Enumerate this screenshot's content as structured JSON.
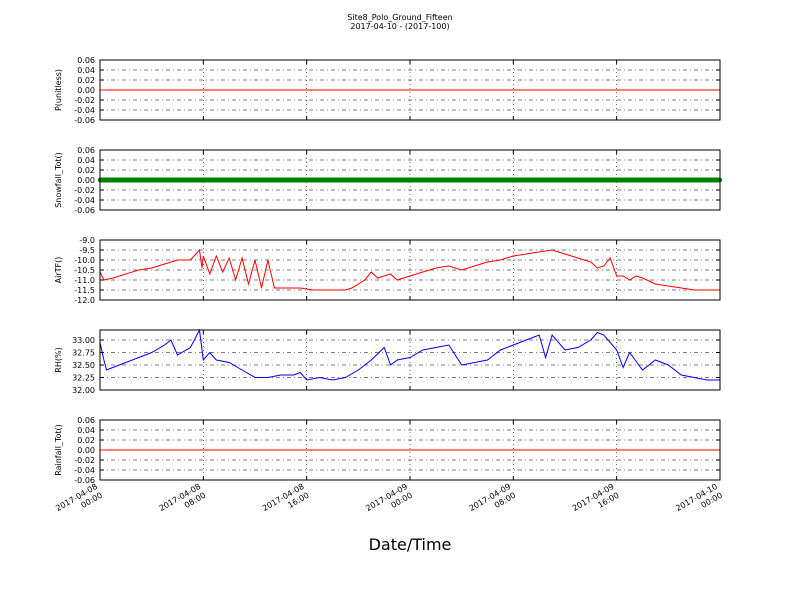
{
  "figure": {
    "title": "Site8_Polo_Ground_Fifteen",
    "subtitle": "2017-04-10 - (2017-100)",
    "xlabel": "Date/Time"
  },
  "chart_data": {
    "type": "line",
    "x_axis": {
      "start": "2017-04-08 00:00",
      "end": "2017-04-10 00:00",
      "tick_hours": [
        0,
        8,
        16,
        24,
        32,
        40,
        48
      ],
      "tick_labels": [
        [
          "2017-04-08",
          "00:00"
        ],
        [
          "2017-04-08",
          "08:00"
        ],
        [
          "2017-04-08",
          "16:00"
        ],
        [
          "2017-04-09",
          "00:00"
        ],
        [
          "2017-04-09",
          "08:00"
        ],
        [
          "2017-04-09",
          "16:00"
        ],
        [
          "2017-04-10",
          "00:00"
        ]
      ]
    },
    "grid": "horizontal dash-dot lines, vertical dotted at ticks",
    "panels": [
      {
        "ylabel": "P(unitless)",
        "ylim": [
          -0.06,
          0.06
        ],
        "yticks": [
          0.06,
          0.04,
          0.02,
          0.0,
          -0.02,
          -0.04,
          -0.06
        ],
        "ytick_labels": [
          "0.06",
          "0.04",
          "0.02",
          "0.00",
          "-0.02",
          "-0.04",
          "-0.06"
        ],
        "color": "#ff0000",
        "style": "line",
        "points": [
          [
            0,
            0.0
          ],
          [
            48,
            0.0
          ]
        ]
      },
      {
        "ylabel": "Snowfall_Tot()",
        "ylim": [
          -0.06,
          0.06
        ],
        "yticks": [
          0.06,
          0.04,
          0.02,
          0.0,
          -0.02,
          -0.04,
          -0.06
        ],
        "ytick_labels": [
          "0.06",
          "0.04",
          "0.02",
          "0.00",
          "-0.02",
          "-0.04",
          "-0.06"
        ],
        "color": "#008000",
        "style": "markers",
        "points": [
          [
            0,
            0.0
          ],
          [
            48,
            0.0
          ]
        ]
      },
      {
        "ylabel": "AirTF()",
        "ylim": [
          -12.0,
          -9.0
        ],
        "yticks": [
          -9.0,
          -9.5,
          -10.0,
          -10.5,
          -11.0,
          -11.5,
          -12.0
        ],
        "ytick_labels": [
          "-9.0",
          "-9.5",
          "-10.0",
          "-10.5",
          "-11.0",
          "-11.5",
          "-12.0"
        ],
        "color": "#ff0000",
        "style": "line",
        "points": [
          [
            0,
            -10.6
          ],
          [
            0.3,
            -11.0
          ],
          [
            1,
            -10.9
          ],
          [
            2,
            -10.7
          ],
          [
            3,
            -10.5
          ],
          [
            4,
            -10.4
          ],
          [
            5,
            -10.2
          ],
          [
            6,
            -10.0
          ],
          [
            7,
            -10.0
          ],
          [
            8,
            -9.8
          ],
          [
            9,
            -9.8
          ],
          [
            10,
            -9.9
          ],
          [
            11,
            -9.9
          ],
          [
            12,
            -10.0
          ],
          [
            13,
            -10.0
          ],
          [
            7.7,
            -9.5
          ],
          [
            7.9,
            -10.4
          ],
          [
            8.5,
            -10.7
          ],
          [
            9.5,
            -10.6
          ],
          [
            10.5,
            -11.0
          ],
          [
            11.5,
            -11.2
          ],
          [
            12.5,
            -11.4
          ],
          [
            13.5,
            -11.4
          ],
          [
            14.5,
            -11.4
          ],
          [
            15.5,
            -11.4
          ],
          [
            16.5,
            -11.5
          ],
          [
            17.5,
            -11.5
          ],
          [
            18.5,
            -11.5
          ],
          [
            19,
            -11.5
          ],
          [
            19.5,
            -11.4
          ],
          [
            20.5,
            -11.0
          ],
          [
            21,
            -10.6
          ],
          [
            21.5,
            -10.9
          ],
          [
            22.5,
            -10.7
          ],
          [
            23,
            -11.0
          ],
          [
            24,
            -10.8
          ],
          [
            25,
            -10.6
          ],
          [
            26,
            -10.4
          ],
          [
            27,
            -10.3
          ],
          [
            28,
            -10.5
          ],
          [
            29,
            -10.3
          ],
          [
            30,
            -10.1
          ],
          [
            31,
            -10.0
          ],
          [
            32,
            -9.8
          ],
          [
            33,
            -9.7
          ],
          [
            34,
            -9.6
          ],
          [
            35,
            -9.5
          ],
          [
            36,
            -9.7
          ],
          [
            37,
            -9.9
          ],
          [
            38,
            -10.1
          ],
          [
            38.5,
            -10.4
          ],
          [
            39,
            -10.3
          ],
          [
            39.5,
            -9.9
          ],
          [
            40,
            -10.8
          ],
          [
            40.5,
            -10.8
          ],
          [
            41,
            -11.0
          ],
          [
            41.5,
            -10.8
          ],
          [
            42,
            -10.9
          ],
          [
            43,
            -11.2
          ],
          [
            44,
            -11.3
          ],
          [
            45,
            -11.4
          ],
          [
            46,
            -11.5
          ],
          [
            47,
            -11.5
          ],
          [
            48,
            -11.5
          ]
        ]
      },
      {
        "ylabel": "RH(%)",
        "ylim": [
          32.0,
          33.2
        ],
        "yticks": [
          33.0,
          32.75,
          32.5,
          32.25,
          32.0
        ],
        "ytick_labels": [
          "33.00",
          "32.75",
          "32.50",
          "32.25",
          "32.00"
        ],
        "color": "#0000ff",
        "style": "line",
        "points": [
          [
            0,
            32.95
          ],
          [
            0.3,
            32.6
          ],
          [
            0.5,
            32.4
          ],
          [
            1,
            32.45
          ],
          [
            2,
            32.55
          ],
          [
            3,
            32.65
          ],
          [
            4,
            32.75
          ],
          [
            5,
            32.9
          ],
          [
            5.5,
            33.0
          ],
          [
            6,
            32.7
          ],
          [
            7,
            32.85
          ],
          [
            7.7,
            33.2
          ],
          [
            8,
            32.6
          ],
          [
            8.5,
            32.75
          ],
          [
            9,
            32.6
          ],
          [
            10,
            32.55
          ],
          [
            11,
            32.4
          ],
          [
            12,
            32.25
          ],
          [
            13,
            32.25
          ],
          [
            14,
            32.3
          ],
          [
            15,
            32.3
          ],
          [
            15.5,
            32.35
          ],
          [
            16,
            32.2
          ],
          [
            17,
            32.25
          ],
          [
            18,
            32.2
          ],
          [
            19,
            32.25
          ],
          [
            20,
            32.4
          ],
          [
            21,
            32.6
          ],
          [
            22,
            32.85
          ],
          [
            22.5,
            32.5
          ],
          [
            23,
            32.6
          ],
          [
            24,
            32.65
          ],
          [
            25,
            32.8
          ],
          [
            26,
            32.85
          ],
          [
            27,
            32.9
          ],
          [
            28,
            32.5
          ],
          [
            29,
            32.55
          ],
          [
            30,
            32.6
          ],
          [
            31,
            32.8
          ],
          [
            32,
            32.9
          ],
          [
            33,
            33.0
          ],
          [
            34,
            33.1
          ],
          [
            34.5,
            32.65
          ],
          [
            35,
            33.1
          ],
          [
            36,
            32.8
          ],
          [
            37,
            32.85
          ],
          [
            38,
            33.0
          ],
          [
            38.5,
            33.15
          ],
          [
            39,
            33.1
          ],
          [
            40,
            32.8
          ],
          [
            40.5,
            32.45
          ],
          [
            41,
            32.75
          ],
          [
            42,
            32.4
          ],
          [
            43,
            32.6
          ],
          [
            44,
            32.5
          ],
          [
            45,
            32.3
          ],
          [
            46,
            32.25
          ],
          [
            47,
            32.2
          ],
          [
            48,
            32.2
          ]
        ]
      },
      {
        "ylabel": "Rainfall_Tot()",
        "ylim": [
          -0.06,
          0.06
        ],
        "yticks": [
          0.06,
          0.04,
          0.02,
          0.0,
          -0.02,
          -0.04,
          -0.06
        ],
        "ytick_labels": [
          "0.06",
          "0.04",
          "0.02",
          "0.00",
          "-0.02",
          "-0.04",
          "-0.06"
        ],
        "color": "#ff0000",
        "style": "line",
        "points": [
          [
            0,
            0.0
          ],
          [
            48,
            0.0
          ]
        ]
      }
    ]
  }
}
